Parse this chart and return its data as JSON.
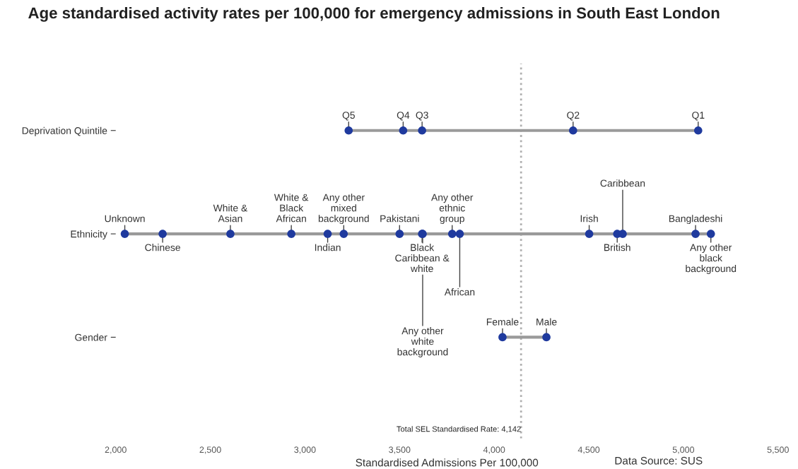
{
  "chart_data": {
    "type": "scatter",
    "title": "Age standardised activity rates per 100,000 for emergency admissions in South East London",
    "orientation": "horizontal",
    "categories": [
      "Deprivation Quintile",
      "Ethnicity",
      "Gender"
    ],
    "series": [
      {
        "color": "#1f3a9e",
        "values": [
          3231,
          2048,
          4044
        ],
        "value_labels": [
          "Q5",
          "Unknown",
          "Female"
        ]
      },
      {
        "color": "#1f3a9e",
        "values": [
          3519,
          2248,
          4276
        ],
        "value_labels": [
          "Q4",
          "Chinese",
          "Male"
        ]
      },
      {
        "color": "#1f3a9e",
        "values": [
          3619,
          2606,
          null
        ],
        "value_labels": [
          "Q3",
          "White &\nAsian",
          null
        ]
      },
      {
        "color": "#1f3a9e",
        "values": [
          4417,
          2928,
          null
        ],
        "value_labels": [
          "Q2",
          "White &\nBlack\nAfrican",
          null
        ]
      },
      {
        "color": "#1f3a9e",
        "values": [
          5078,
          3120,
          null
        ],
        "value_labels": [
          "Q1",
          "Indian",
          null
        ]
      },
      {
        "color": "#1f3a9e",
        "values": [
          null,
          3205,
          null
        ],
        "value_labels": [
          null,
          "Any other\nmixed\nbackground",
          null
        ]
      },
      {
        "color": "#1f3a9e",
        "values": [
          null,
          3500,
          null
        ],
        "value_labels": [
          null,
          "Pakistani",
          null
        ]
      },
      {
        "color": "#1f3a9e",
        "values": [
          null,
          3619,
          null
        ],
        "value_labels": [
          null,
          "Black\nCaribbean &\nwhite",
          null
        ]
      },
      {
        "color": "#1f3a9e",
        "values": [
          null,
          3622,
          null
        ],
        "value_labels": [
          null,
          "Any other\nwhite\nbackground",
          null
        ]
      },
      {
        "color": "#1f3a9e",
        "values": [
          null,
          3778,
          null
        ],
        "value_labels": [
          null,
          "Any other\nethnic\ngroup",
          null
        ]
      },
      {
        "color": "#1f3a9e",
        "values": [
          null,
          3818,
          null
        ],
        "value_labels": [
          null,
          "African",
          null
        ]
      },
      {
        "color": "#1f3a9e",
        "values": [
          null,
          4502,
          null
        ],
        "value_labels": [
          null,
          "Irish",
          null
        ]
      },
      {
        "color": "#1f3a9e",
        "values": [
          null,
          4650,
          null
        ],
        "value_labels": [
          null,
          "British",
          null
        ]
      },
      {
        "color": "#1f3a9e",
        "values": [
          null,
          4679,
          null
        ],
        "value_labels": [
          null,
          "Caribbean",
          null
        ]
      },
      {
        "color": "#1f3a9e",
        "values": [
          null,
          5064,
          null
        ],
        "value_labels": [
          null,
          "Bangladeshi",
          null
        ]
      },
      {
        "color": "#1f3a9e",
        "values": [
          null,
          5145,
          null
        ],
        "value_labels": [
          null,
          "Any other\nblack\nbackground",
          null
        ]
      }
    ],
    "xlabel": "Standardised Admissions Per 100,000",
    "xlim": [
      2000,
      5500
    ],
    "xticks": [
      {
        "value": 2000,
        "label": "2,000"
      },
      {
        "value": 2500,
        "label": "2,500"
      },
      {
        "value": 3000,
        "label": "3,000"
      },
      {
        "value": 3500,
        "label": "3,500"
      },
      {
        "value": 4000,
        "label": "4,000"
      },
      {
        "value": 4500,
        "label": "4,500"
      },
      {
        "value": 5000,
        "label": "5,000"
      },
      {
        "value": 5500,
        "label": "5,500"
      }
    ],
    "ref_lines": [
      {
        "axis": "x",
        "value": 4142,
        "label": "Total SEL Standardised Rate: 4,142",
        "color": "#b0b0b0",
        "line_style": "dotted"
      }
    ],
    "annotations": [
      "Data Source: SUS"
    ],
    "marker": "circle",
    "grid": false,
    "legend": false
  }
}
